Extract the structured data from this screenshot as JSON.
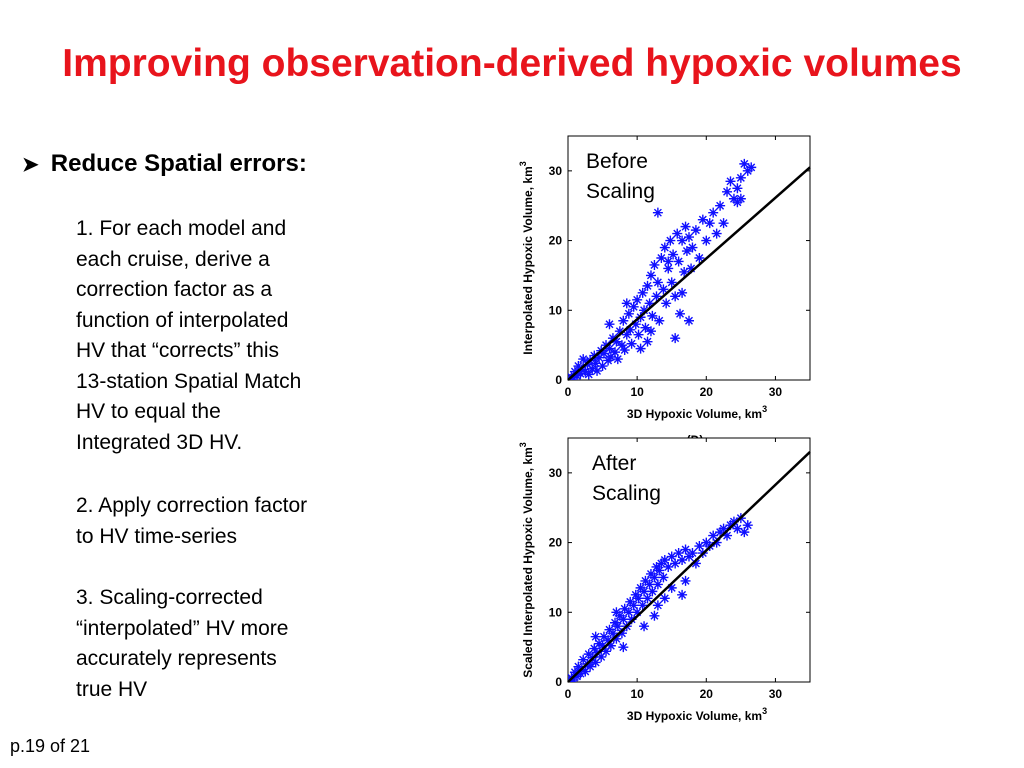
{
  "slide": {
    "title": "Improving observation-derived hypoxic volumes",
    "bullet": "Reduce Spatial errors:",
    "paragraphs": [
      [
        "1. For each model and",
        "each cruise, derive a",
        "correction factor as a",
        "function of interpolated",
        "HV that “corrects” this",
        "13-station Spatial Match",
        "HV to equal the",
        "Integrated 3D HV."
      ],
      [
        "2. Apply correction factor",
        "to HV time-series"
      ],
      [
        "3. Scaling-corrected",
        "“interpolated” HV more",
        "accurately represents",
        "true HV"
      ]
    ],
    "page": "p.19 of 21"
  },
  "colors": {
    "title": "#e8141c",
    "marker": "#1010ff",
    "line": "#000000"
  },
  "chart_data": [
    {
      "type": "scatter",
      "title": "",
      "annotation": [
        "Before",
        "Scaling"
      ],
      "panel_label": "(D)",
      "xlabel": "3D Hypoxic Volume, km",
      "xlabel_sup": "3",
      "ylabel": "Interpolated Hypoxic Volume, km",
      "ylabel_sup": "3",
      "xlim": [
        0,
        35
      ],
      "ylim": [
        0,
        35
      ],
      "xticks": [
        0,
        10,
        20,
        30
      ],
      "yticks": [
        0,
        10,
        20,
        30
      ],
      "marker": "asterisk",
      "reference_line": {
        "from": [
          0,
          0
        ],
        "to": [
          35,
          30.5
        ]
      },
      "series": [
        {
          "points": [
            [
              0.2,
              0.1
            ],
            [
              0.5,
              0.4
            ],
            [
              0.8,
              0.3
            ],
            [
              1.0,
              1.2
            ],
            [
              1.3,
              0.6
            ],
            [
              1.5,
              2.0
            ],
            [
              1.8,
              0.9
            ],
            [
              2.0,
              1.5
            ],
            [
              2.2,
              3.0
            ],
            [
              2.5,
              1.2
            ],
            [
              2.8,
              2.2
            ],
            [
              3.0,
              0.8
            ],
            [
              3.2,
              2.8
            ],
            [
              3.5,
              1.6
            ],
            [
              3.8,
              3.5
            ],
            [
              4.0,
              2.4
            ],
            [
              4.2,
              1.3
            ],
            [
              4.5,
              3.2
            ],
            [
              4.8,
              4.2
            ],
            [
              5.0,
              2.0
            ],
            [
              5.2,
              3.8
            ],
            [
              5.5,
              5.0
            ],
            [
              5.8,
              2.8
            ],
            [
              6.0,
              4.5
            ],
            [
              6.2,
              3.3
            ],
            [
              6.5,
              6.0
            ],
            [
              6.8,
              4.0
            ],
            [
              7.0,
              5.5
            ],
            [
              7.2,
              3.0
            ],
            [
              7.5,
              7.0
            ],
            [
              7.8,
              5.0
            ],
            [
              8.0,
              8.5
            ],
            [
              8.2,
              4.3
            ],
            [
              8.5,
              6.5
            ],
            [
              8.8,
              9.5
            ],
            [
              9.0,
              7.2
            ],
            [
              9.2,
              5.2
            ],
            [
              9.5,
              10.5
            ],
            [
              9.8,
              8.0
            ],
            [
              10.0,
              11.5
            ],
            [
              10.2,
              6.5
            ],
            [
              10.5,
              9.0
            ],
            [
              10.8,
              12.5
            ],
            [
              11.0,
              10.0
            ],
            [
              11.2,
              7.5
            ],
            [
              11.5,
              13.5
            ],
            [
              11.8,
              11.0
            ],
            [
              12.0,
              15.0
            ],
            [
              12.2,
              9.2
            ],
            [
              12.5,
              16.5
            ],
            [
              12.8,
              12.0
            ],
            [
              13.0,
              14.0
            ],
            [
              13.2,
              8.5
            ],
            [
              13.5,
              17.5
            ],
            [
              13.8,
              13.0
            ],
            [
              14.0,
              19.0
            ],
            [
              14.2,
              11.0
            ],
            [
              14.5,
              16.0
            ],
            [
              14.8,
              20.0
            ],
            [
              15.0,
              14.0
            ],
            [
              15.2,
              18.0
            ],
            [
              15.5,
              12.0
            ],
            [
              15.8,
              21.0
            ],
            [
              16.0,
              17.0
            ],
            [
              16.2,
              9.5
            ],
            [
              16.5,
              20.0
            ],
            [
              16.8,
              15.5
            ],
            [
              17.0,
              22.0
            ],
            [
              17.2,
              18.5
            ],
            [
              17.5,
              20.5
            ],
            [
              17.8,
              16.0
            ],
            [
              18.0,
              19.0
            ],
            [
              18.5,
              21.5
            ],
            [
              19.0,
              17.5
            ],
            [
              19.5,
              23.0
            ],
            [
              20.0,
              20.0
            ],
            [
              20.5,
              22.5
            ],
            [
              21.0,
              24.0
            ],
            [
              21.5,
              21.0
            ],
            [
              22.0,
              25.0
            ],
            [
              22.5,
              22.5
            ],
            [
              23.0,
              27.0
            ],
            [
              23.5,
              28.5
            ],
            [
              24.0,
              26.0
            ],
            [
              24.5,
              27.5
            ],
            [
              25.0,
              29.0
            ],
            [
              25.5,
              31.0
            ],
            [
              26.0,
              30.0
            ],
            [
              26.5,
              30.5
            ],
            [
              25.0,
              26.0
            ],
            [
              24.5,
              25.5
            ],
            [
              13.0,
              24.0
            ],
            [
              14.5,
              17.0
            ],
            [
              16.5,
              12.5
            ],
            [
              15.5,
              6.0
            ],
            [
              11.5,
              5.5
            ],
            [
              12.0,
              7.0
            ],
            [
              10.5,
              4.5
            ],
            [
              6.0,
              8.0
            ],
            [
              8.5,
              11.0
            ],
            [
              17.5,
              8.5
            ]
          ]
        }
      ]
    },
    {
      "type": "scatter",
      "title": "",
      "annotation": [
        "After",
        "Scaling"
      ],
      "xlabel": "3D Hypoxic Volume, km",
      "xlabel_sup": "3",
      "ylabel": "Scaled Interpolated Hypoxic Volume, km",
      "ylabel_sup": "3",
      "xlim": [
        0,
        35
      ],
      "ylim": [
        0,
        35
      ],
      "xticks": [
        0,
        10,
        20,
        30
      ],
      "yticks": [
        0,
        10,
        20,
        30
      ],
      "marker": "asterisk",
      "reference_line": {
        "from": [
          0,
          0
        ],
        "to": [
          35,
          33
        ]
      },
      "series": [
        {
          "points": [
            [
              0.2,
              0.1
            ],
            [
              0.5,
              0.6
            ],
            [
              0.8,
              0.3
            ],
            [
              1.0,
              1.4
            ],
            [
              1.3,
              0.8
            ],
            [
              1.5,
              2.2
            ],
            [
              1.8,
              1.2
            ],
            [
              2.0,
              1.8
            ],
            [
              2.2,
              3.2
            ],
            [
              2.5,
              1.5
            ],
            [
              2.8,
              2.6
            ],
            [
              3.0,
              4.0
            ],
            [
              3.2,
              2.2
            ],
            [
              3.5,
              3.5
            ],
            [
              3.8,
              4.8
            ],
            [
              4.0,
              2.8
            ],
            [
              4.2,
              4.2
            ],
            [
              4.5,
              5.5
            ],
            [
              4.8,
              3.6
            ],
            [
              5.0,
              5.2
            ],
            [
              5.2,
              6.5
            ],
            [
              5.5,
              4.4
            ],
            [
              5.8,
              6.0
            ],
            [
              6.0,
              7.5
            ],
            [
              6.2,
              5.2
            ],
            [
              6.5,
              7.0
            ],
            [
              6.8,
              8.5
            ],
            [
              7.0,
              6.2
            ],
            [
              7.2,
              8.0
            ],
            [
              7.5,
              9.5
            ],
            [
              7.8,
              7.0
            ],
            [
              8.0,
              9.0
            ],
            [
              8.2,
              10.5
            ],
            [
              8.5,
              8.0
            ],
            [
              8.8,
              10.0
            ],
            [
              9.0,
              11.5
            ],
            [
              9.2,
              9.0
            ],
            [
              9.5,
              11.0
            ],
            [
              9.8,
              12.5
            ],
            [
              10.0,
              10.0
            ],
            [
              10.2,
              12.0
            ],
            [
              10.5,
              13.5
            ],
            [
              10.8,
              11.0
            ],
            [
              11.0,
              13.0
            ],
            [
              11.2,
              14.5
            ],
            [
              11.5,
              12.0
            ],
            [
              11.8,
              14.0
            ],
            [
              12.0,
              15.5
            ],
            [
              12.2,
              13.0
            ],
            [
              12.5,
              15.0
            ],
            [
              12.8,
              16.5
            ],
            [
              13.0,
              14.0
            ],
            [
              13.2,
              16.0
            ],
            [
              13.5,
              17.0
            ],
            [
              13.8,
              15.0
            ],
            [
              14.0,
              17.5
            ],
            [
              14.5,
              16.5
            ],
            [
              15.0,
              18.0
            ],
            [
              15.5,
              17.0
            ],
            [
              16.0,
              18.5
            ],
            [
              16.5,
              17.5
            ],
            [
              17.0,
              19.0
            ],
            [
              17.5,
              18.0
            ],
            [
              18.0,
              18.5
            ],
            [
              18.5,
              17.0
            ],
            [
              19.0,
              19.5
            ],
            [
              19.5,
              18.5
            ],
            [
              20.0,
              20.0
            ],
            [
              20.5,
              19.5
            ],
            [
              21.0,
              21.0
            ],
            [
              21.5,
              20.0
            ],
            [
              22.0,
              21.5
            ],
            [
              22.5,
              22.0
            ],
            [
              23.0,
              21.0
            ],
            [
              23.5,
              22.5
            ],
            [
              24.0,
              23.0
            ],
            [
              24.5,
              22.0
            ],
            [
              25.0,
              23.5
            ],
            [
              25.5,
              21.5
            ],
            [
              26.0,
              22.5
            ],
            [
              13.0,
              11.0
            ],
            [
              15.0,
              13.5
            ],
            [
              16.5,
              12.5
            ],
            [
              17.0,
              14.5
            ],
            [
              12.5,
              9.5
            ],
            [
              11.0,
              8.0
            ],
            [
              8.0,
              5.0
            ],
            [
              14.0,
              12.0
            ],
            [
              4.0,
              6.5
            ],
            [
              7.0,
              10.0
            ]
          ]
        }
      ]
    }
  ]
}
